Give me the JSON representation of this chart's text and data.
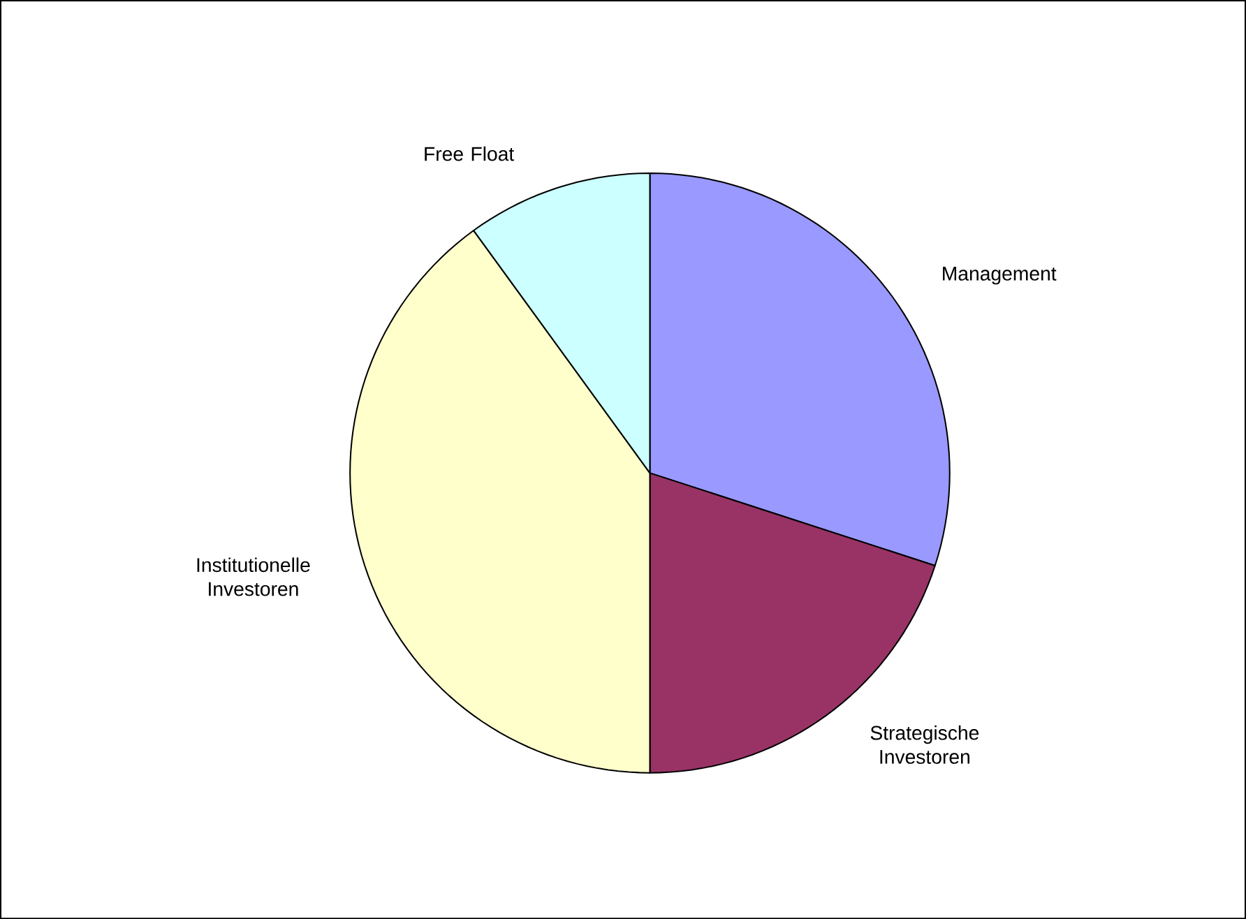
{
  "chart_data": {
    "type": "pie",
    "categories": [
      "Management",
      "Strategische Investoren",
      "Institutionelle Investoren",
      "Free Float"
    ],
    "values": [
      30,
      20,
      40,
      10
    ],
    "colors": [
      "#9999ff",
      "#993366",
      "#ffffcc",
      "#ccffff"
    ]
  }
}
